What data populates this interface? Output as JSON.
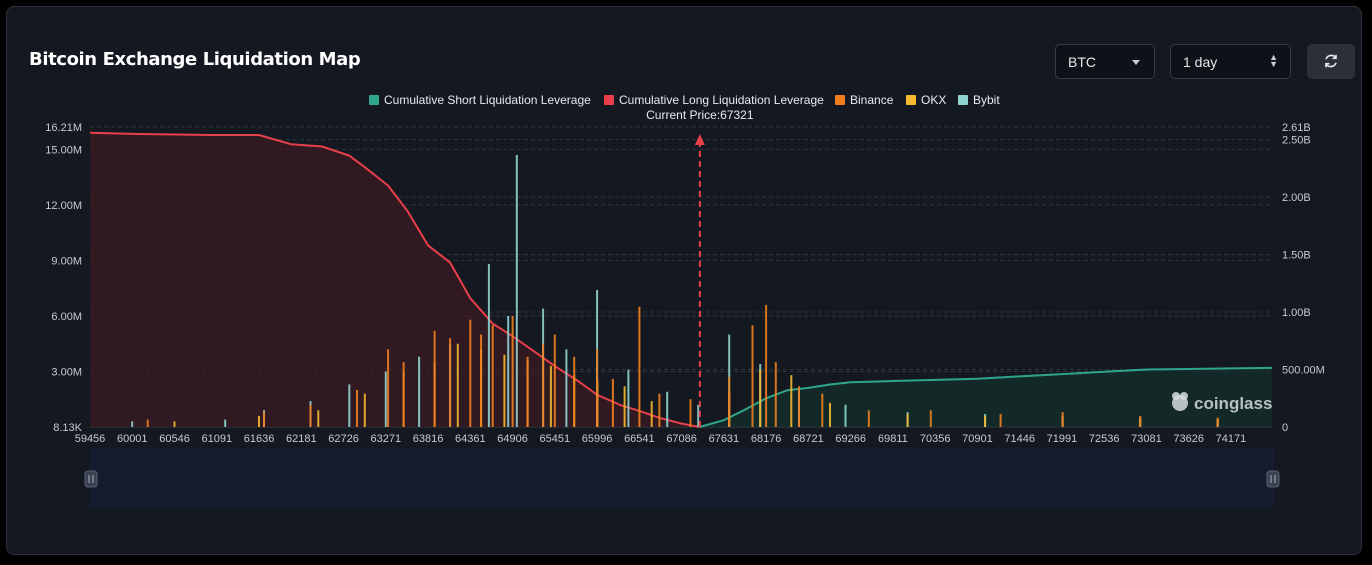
{
  "title": "Bitcoin Exchange Liquidation Map",
  "controls": {
    "symbol": "BTC",
    "period": "1 day"
  },
  "icons": {
    "refresh": "refresh-icon",
    "coinglass": "coinglass-logo"
  },
  "colors": {
    "short_cum": "#2fa58c",
    "long_cum": "#e8404a",
    "binance": "#f0801e",
    "okx": "#f5b82e",
    "bybit": "#8fd3cf",
    "current_price_marker": "#e8404a"
  },
  "chart_data": {
    "type": "bar",
    "title": "",
    "legend": [
      "Cumulative Short Liquidation Leverage",
      "Cumulative Long Liquidation Leverage",
      "Binance",
      "OKX",
      "Bybit"
    ],
    "legend_position": "top-center",
    "current_price_label": "Current Price:67321",
    "current_price": 67321,
    "watermark": "coinglass",
    "x_ticks": [
      "59456",
      "60001",
      "60546",
      "61091",
      "61636",
      "62181",
      "62726",
      "63271",
      "63816",
      "64361",
      "64906",
      "65451",
      "65996",
      "66541",
      "67086",
      "67631",
      "68176",
      "68721",
      "69266",
      "69811",
      "70356",
      "70901",
      "71446",
      "71991",
      "72536",
      "73081",
      "73626",
      "74171"
    ],
    "x_range": [
      59456,
      74700
    ],
    "y_left_ticks": [
      "16.21M",
      "15.00M",
      "12.00M",
      "9.00M",
      "6.00M",
      "3.00M",
      "8.13K"
    ],
    "y_left_range": [
      0,
      16210000
    ],
    "y_right_ticks": [
      "2.61B",
      "2.50B",
      "2.00B",
      "1.50B",
      "1.00B",
      "500.00M",
      "0"
    ],
    "y_right_range": [
      0,
      2610000000
    ],
    "grid": true,
    "series": [
      {
        "name": "Cumulative Long Liquidation Leverage",
        "axis": "right",
        "x": [
          59456,
          60000,
          61000,
          61636,
          62050,
          62450,
          62800,
          63000,
          63300,
          63550,
          63816,
          64100,
          64361,
          64650,
          64906,
          65200,
          65451,
          65750,
          65996,
          66300,
          66541,
          66800,
          67086,
          67321
        ],
        "values": [
          2560000000,
          2550000000,
          2540000000,
          2540000000,
          2460000000,
          2440000000,
          2360000000,
          2260000000,
          2100000000,
          1880000000,
          1580000000,
          1430000000,
          1120000000,
          900000000,
          790000000,
          650000000,
          530000000,
          400000000,
          280000000,
          190000000,
          140000000,
          80000000,
          30000000,
          0
        ]
      },
      {
        "name": "Cumulative Short Liquidation Leverage",
        "axis": "right",
        "x": [
          67321,
          67631,
          67900,
          68176,
          68450,
          68721,
          69000,
          69266,
          69811,
          70356,
          70901,
          71446,
          71991,
          72536,
          73081,
          73626,
          74171,
          74700
        ],
        "values": [
          0,
          60000000,
          150000000,
          250000000,
          320000000,
          340000000,
          370000000,
          390000000,
          400000000,
          410000000,
          420000000,
          440000000,
          460000000,
          480000000,
          500000000,
          505000000,
          510000000,
          515000000
        ]
      },
      {
        "name": "Binance",
        "axis": "left",
        "x": [
          60200,
          61700,
          62300,
          62900,
          63300,
          63500,
          63900,
          64100,
          64361,
          64500,
          64650,
          64906,
          65100,
          65300,
          65451,
          65700,
          65996,
          66200,
          66541,
          66800,
          67200,
          67700,
          68000,
          68176,
          68300,
          68600,
          68900,
          69500,
          70300,
          71200,
          72000,
          73000,
          74000
        ],
        "values": [
          400000,
          800000,
          1200000,
          2000000,
          4200000,
          3500000,
          5200000,
          4800000,
          5800000,
          5000000,
          5500000,
          6000000,
          3800000,
          4500000,
          5000000,
          3800000,
          4200000,
          2600000,
          6500000,
          1800000,
          1500000,
          2700000,
          5500000,
          6600000,
          3500000,
          2200000,
          1800000,
          900000,
          900000,
          700000,
          800000,
          600000,
          500000
        ]
      },
      {
        "name": "OKX",
        "axis": "left",
        "x": [
          60546,
          61636,
          62400,
          63000,
          63500,
          63900,
          64200,
          64500,
          64800,
          65100,
          65400,
          65700,
          66000,
          66350,
          66700,
          67700,
          68100,
          68500,
          69000,
          70000,
          71000,
          72000,
          73000,
          74000
        ],
        "values": [
          300000,
          600000,
          900000,
          1800000,
          3000000,
          3500000,
          4500000,
          4200000,
          3900000,
          3600000,
          3300000,
          2800000,
          2500000,
          2200000,
          1400000,
          1900000,
          3100000,
          2800000,
          1300000,
          700000,
          600000,
          550000,
          450000,
          400000
        ]
      },
      {
        "name": "Bybit",
        "axis": "left",
        "x": [
          60000,
          61200,
          61700,
          62300,
          62800,
          63271,
          63700,
          64100,
          64600,
          64850,
          64960,
          65300,
          65600,
          65996,
          66400,
          66900,
          67300,
          67700,
          68100,
          68600,
          69200,
          70000,
          71000,
          72000,
          73000,
          74000
        ],
        "values": [
          300000,
          400000,
          900000,
          1400000,
          2300000,
          3000000,
          3800000,
          4500000,
          8800000,
          6000000,
          14700000,
          6400000,
          4200000,
          7400000,
          3100000,
          1900000,
          1200000,
          5000000,
          3400000,
          2000000,
          1200000,
          800000,
          700000,
          600000,
          500000,
          450000
        ]
      }
    ]
  }
}
